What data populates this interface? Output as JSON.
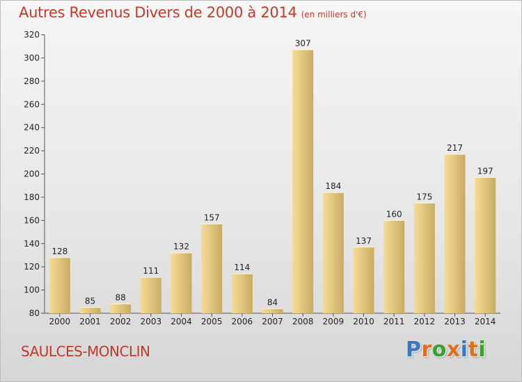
{
  "title": "Autres Revenus Divers de 2000 à 2014",
  "subtitle": "(en milliers d'€)",
  "commune": "SAULCES-MONCLIN",
  "logo": {
    "letters": [
      "P",
      "r",
      "o",
      "x",
      "i",
      "t",
      "i"
    ]
  },
  "colors": {
    "title": "#c0392b",
    "bar_light": "#f5dc96",
    "bar_dark": "#c9ac62",
    "logo": [
      "#3a78c2",
      "#e0701e",
      "#3aa12f",
      "#e0701e",
      "#3a78c2",
      "#e0701e",
      "#3aa12f"
    ]
  },
  "chart_data": {
    "type": "bar",
    "title": "Autres Revenus Divers de 2000 à 2014",
    "subtitle": "(en milliers d'€)",
    "categories": [
      "2000",
      "2001",
      "2002",
      "2003",
      "2004",
      "2005",
      "2006",
      "2007",
      "2008",
      "2009",
      "2010",
      "2011",
      "2012",
      "2013",
      "2014"
    ],
    "values": [
      128,
      85,
      88,
      111,
      132,
      157,
      114,
      84,
      307,
      184,
      137,
      160,
      175,
      217,
      197
    ],
    "ylim": [
      80,
      320
    ],
    "yticks": [
      80,
      100,
      120,
      140,
      160,
      180,
      200,
      220,
      240,
      260,
      280,
      300,
      320
    ],
    "grid": false,
    "legend": "none"
  }
}
